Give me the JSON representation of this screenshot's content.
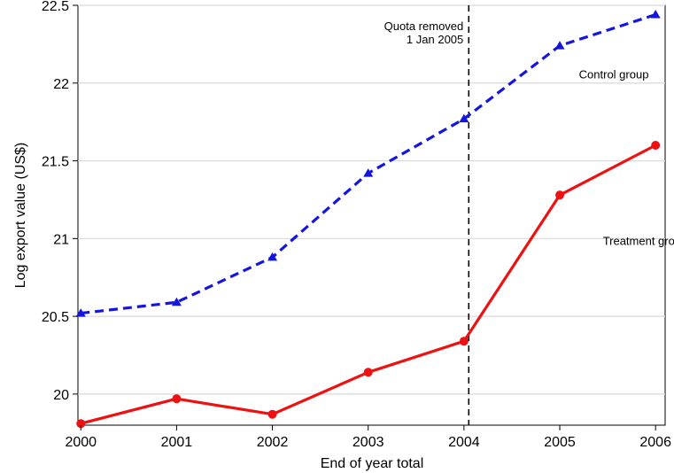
{
  "chart_data": {
    "type": "line",
    "xlabel": "End of year total",
    "ylabel": "Log export value (US$)",
    "x": [
      2000,
      2001,
      2002,
      2003,
      2004,
      2005,
      2006
    ],
    "xlim": [
      1999.97,
      2006.1
    ],
    "ylim": [
      19.8,
      22.5
    ],
    "yticks": [
      20,
      20.5,
      21,
      21.5,
      22,
      22.5
    ],
    "ytick_labels": [
      "20",
      "20.5",
      "21",
      "21.5",
      "22",
      "22.5"
    ],
    "xtick_labels": [
      "2000",
      "2001",
      "2002",
      "2003",
      "2004",
      "2005",
      "2006"
    ],
    "grid": "horizontal",
    "series": [
      {
        "name": "Control group",
        "values": [
          20.52,
          20.59,
          20.88,
          21.42,
          21.77,
          22.24,
          22.44
        ],
        "color": "#1515e0",
        "line_style": "dashed",
        "marker": "triangle"
      },
      {
        "name": "Treatment group",
        "values": [
          19.81,
          19.97,
          19.87,
          20.14,
          20.34,
          21.28,
          21.6
        ],
        "color": "#ee1111",
        "line_style": "solid",
        "marker": "circle"
      }
    ],
    "vline": {
      "x": 2004.05,
      "style": "dashed",
      "color": "#000000",
      "label_lines": [
        "Quota removed",
        "1 Jan 2005"
      ]
    },
    "series_labels": [
      {
        "text": "Control group",
        "x": 2005.2,
        "y": 22.03
      },
      {
        "text": "Treatment group",
        "x": 2005.45,
        "y": 20.96
      }
    ]
  }
}
